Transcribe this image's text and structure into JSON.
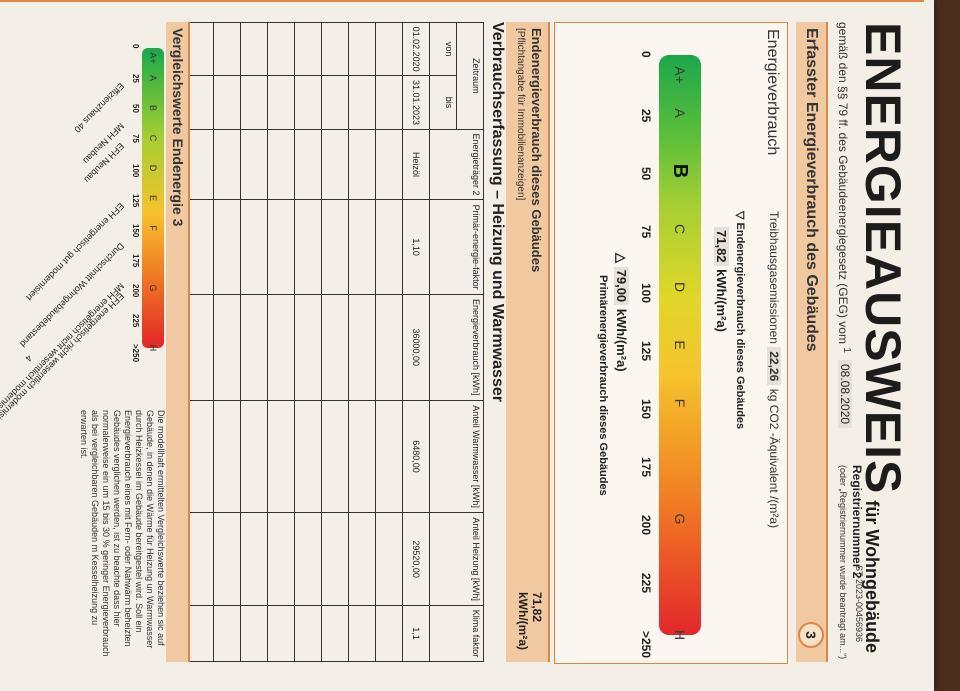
{
  "header": {
    "title": "ENERGIEAUSWEIS",
    "title_suffix": "für Wohngebäude",
    "subtitle": "gemäß den §§ 79 ff. des Gebäudeenergiegesetz (GEG) vom",
    "footnote_mark": "1",
    "date": "08.08.2020",
    "registration_label": "Registriernummer 2",
    "registration_value": "ST-2023-00456936",
    "registration_hint": "(oder „Registriernummer wurde beantragt am...“)"
  },
  "section": {
    "title": "Erfasster Energieverbrauch des Gebäudes",
    "page_number": "3"
  },
  "energy": {
    "box_title": "Energieverbrauch",
    "ghg_label": "Treibhausgasemissionen",
    "ghg_value": "22,26",
    "ghg_unit": "kg CO2 -Äquivalent /(m²a)",
    "end_label": "Endenergieverbrauch dieses Gebäudes",
    "end_value": "71,82",
    "end_unit": "kWh/(m²a)",
    "primary_value": "79,00",
    "primary_unit": "kWh/(m²a)",
    "primary_label": "Primärenergieverbrauch dieses Gebäudes",
    "classes": [
      "A+",
      "A",
      "B",
      "C",
      "D",
      "E",
      "F",
      "G",
      "H"
    ],
    "ticks": [
      "0",
      "25",
      "50",
      "75",
      "100",
      "125",
      "150",
      "175",
      "200",
      "225",
      ">250"
    ]
  },
  "end_box": {
    "title": "Endenergieverbrauch dieses Gebäudes",
    "subtitle": "[Pflichtangabe für Immobilienanzeigen]",
    "value": "71,82",
    "unit": "kWh/(m²a)"
  },
  "consumption": {
    "title": "Verbrauchserfassung – Heizung und Warmwasser",
    "headers": {
      "zeitraum": "Zeitraum",
      "von": "von",
      "bis": "bis",
      "energietraeger": "Energieträger 2",
      "primaer": "Primär-energie-faktor",
      "verbrauch": "Energieverbrauch [kWh]",
      "warmwasser": "Anteil Warmwasser [kWh]",
      "heizung": "Anteil Heizung [kWh]",
      "klima": "Klima faktor"
    },
    "rows": [
      {
        "von": "01.02.2020",
        "bis": "31.01.2023",
        "traeger": "Heizöl",
        "faktor": "1,10",
        "verbrauch": "36000,00",
        "warmwasser": "6480,00",
        "heizung": "29520,00",
        "klima": "1,1"
      }
    ]
  },
  "comparison": {
    "title": "Vergleichswerte Endenergie 3",
    "classes": [
      "A+",
      "A",
      "B",
      "C",
      "D",
      "E",
      "F",
      "G",
      "H"
    ],
    "ticks": [
      "0",
      "25",
      "50",
      "75",
      "100",
      "125",
      "150",
      "175",
      "200",
      "225",
      ">250"
    ],
    "references": [
      "Effizienzhaus 40",
      "MFH Neubau",
      "EFH Neubau",
      "EFH energetisch gut modernisiert",
      "Durchschnitt Wohngebäudebestand",
      "MFH energetisch nicht wesentlich modernisiert",
      "EFH energetisch nicht wesentlich modernisiert"
    ],
    "footnote_4": "4",
    "note": "Die modellhaft ermittelten Vergleichswerte beziehen sic auf Gebäude, in denen die Wärme für Heizung un Warmwasser durch Heizkessel im Gebäude bereitgestel wird. Soll ein Energieverbrauch eines mit Fern- oder Nahwärm beheizten Gebäudes verglichen werden, ist zu beachte dass hier normalerweise ein um 15 bis 30 % geringer Energieverbrauch als bei vergleichbaren Gebäuden m Kesselheizung zu erwarten ist."
  },
  "colors": {
    "accent": "#d9874a",
    "section_bg": "#f1c9a0"
  }
}
